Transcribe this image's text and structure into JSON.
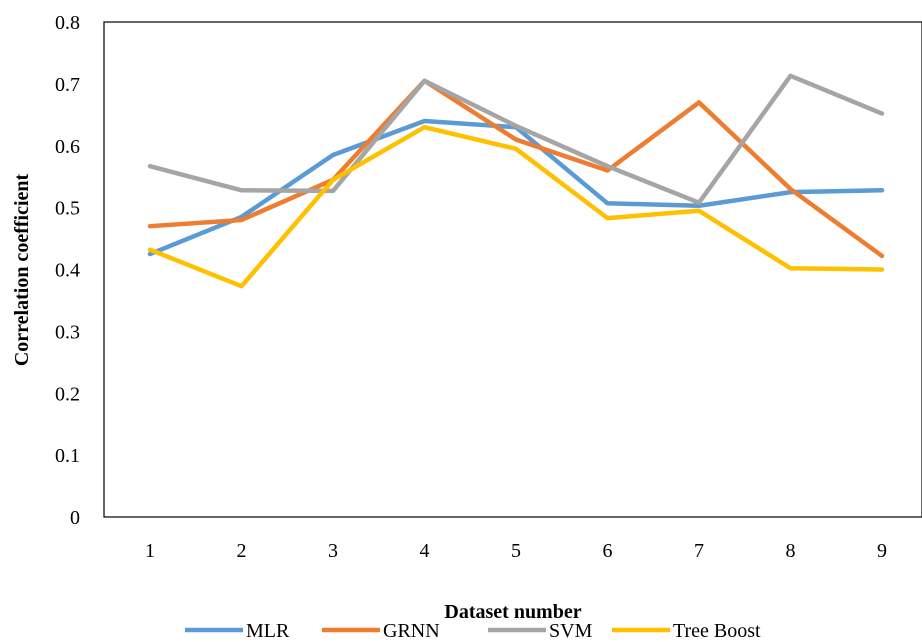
{
  "chart_data": {
    "type": "line",
    "xlabel": "Dataset number",
    "ylabel": "Correlation coefficient",
    "categories": [
      "1",
      "2",
      "3",
      "4",
      "5",
      "6",
      "7",
      "8",
      "9"
    ],
    "y_ticks": [
      "0",
      "0.1",
      "0.2",
      "0.3",
      "0.4",
      "0.5",
      "0.6",
      "0.7",
      "0.8"
    ],
    "ylim": [
      0,
      0.8
    ],
    "grid": false,
    "legend_position": "bottom",
    "series": [
      {
        "name": "MLR",
        "color": "#5B9BD5",
        "values": [
          0.425,
          0.485,
          0.585,
          0.64,
          0.63,
          0.507,
          0.503,
          0.525,
          0.528
        ]
      },
      {
        "name": "GRNN",
        "color": "#ED7D31",
        "values": [
          0.47,
          0.48,
          0.545,
          0.705,
          0.61,
          0.56,
          0.67,
          0.53,
          0.422
        ]
      },
      {
        "name": "SVM",
        "color": "#A5A5A5",
        "values": [
          0.567,
          0.528,
          0.527,
          0.705,
          0.632,
          0.567,
          0.508,
          0.713,
          0.652
        ]
      },
      {
        "name": "Tree Boost",
        "color": "#FFC000",
        "values": [
          0.432,
          0.373,
          0.545,
          0.63,
          0.595,
          0.483,
          0.495,
          0.402,
          0.4
        ]
      }
    ]
  }
}
